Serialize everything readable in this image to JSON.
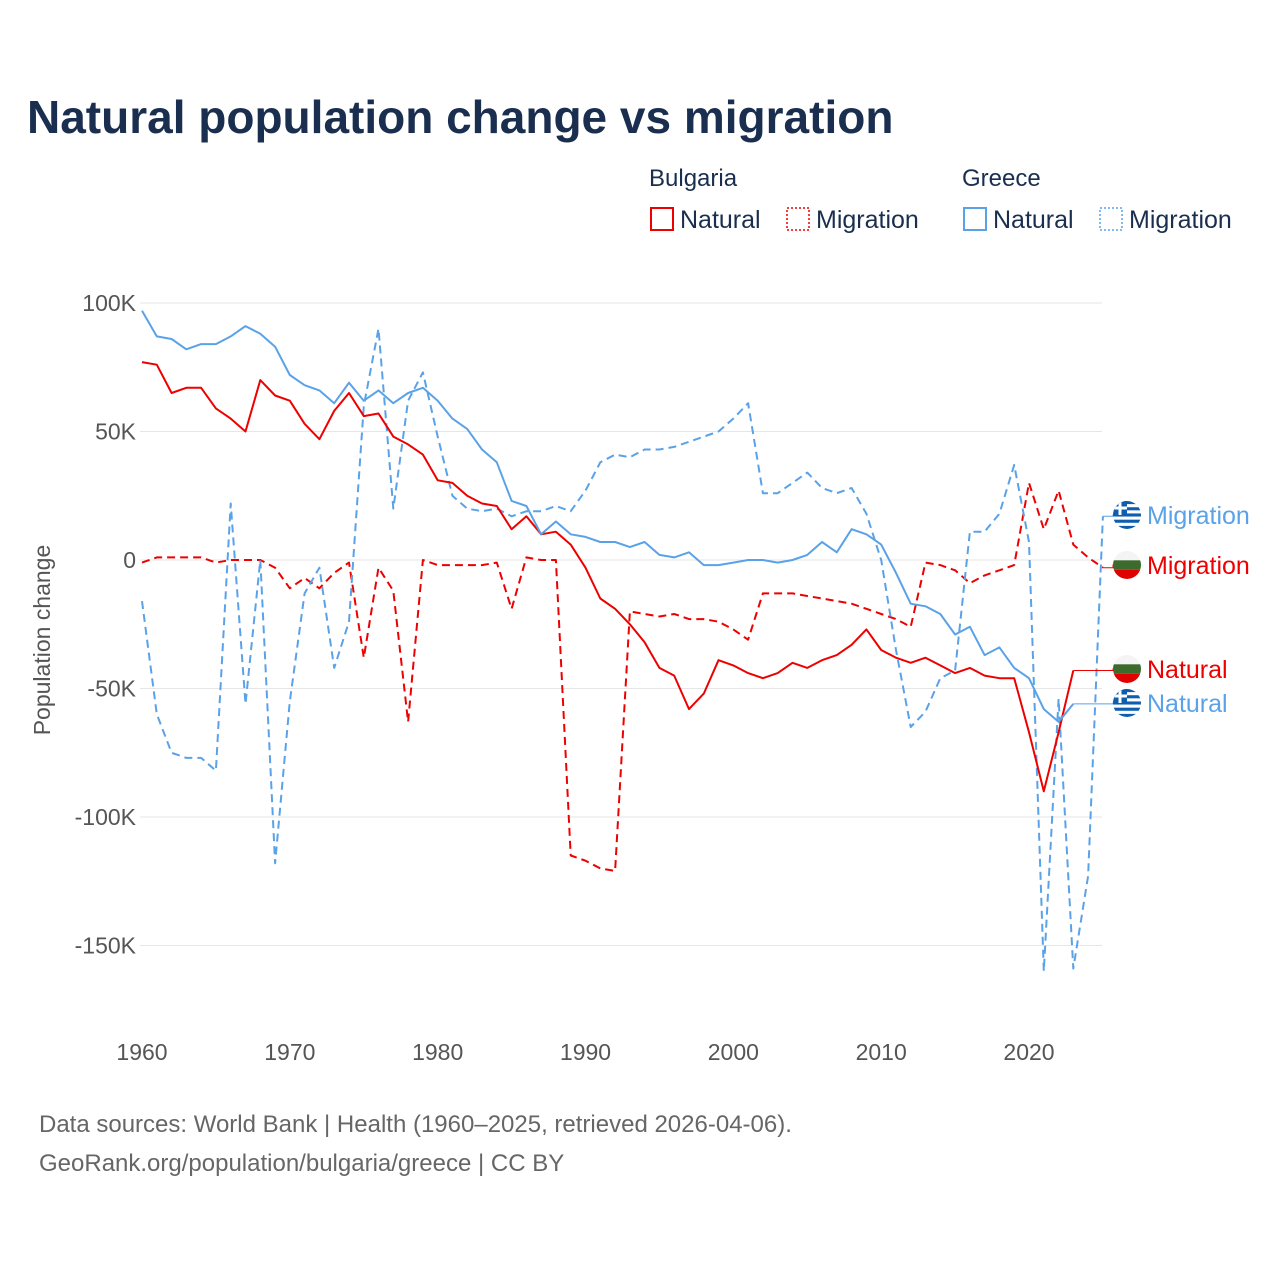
{
  "chart_data": {
    "type": "line",
    "title": "Natural population change vs migration",
    "xlabel": "",
    "ylabel": "Population change",
    "xlim": [
      1960,
      2025
    ],
    "ylim": [
      -165000,
      100000
    ],
    "x_ticks": [
      1960,
      1970,
      1980,
      1990,
      2000,
      2010,
      2020
    ],
    "x_tick_labels": [
      "1960",
      "1970",
      "1980",
      "1990",
      "2000",
      "2010",
      "2020"
    ],
    "y_ticks": [
      100000,
      50000,
      0,
      -50000,
      -100000,
      -150000
    ],
    "y_tick_labels": [
      "100K",
      "50K",
      "0",
      "-50K",
      "-100K",
      "-150K"
    ],
    "grid": true,
    "legend": {
      "placement": "top-right",
      "groups": [
        {
          "label": "Bulgaria",
          "items": [
            "Natural",
            "Migration"
          ]
        },
        {
          "label": "Greece",
          "items": [
            "Natural",
            "Migration"
          ]
        }
      ]
    },
    "colors": {
      "bulgaria": "#ee0000",
      "greece": "#5aa2e8"
    },
    "start_year": 1960,
    "series": [
      {
        "name": "Greece Natural",
        "country": "greece",
        "kind": "natural",
        "end_label": "Natural",
        "values": [
          97,
          87,
          86,
          82,
          84,
          84,
          87,
          91,
          88,
          83,
          72,
          68,
          66,
          61,
          69,
          62,
          66,
          61,
          65,
          67,
          62,
          55,
          51,
          43,
          38,
          23,
          21,
          10,
          15,
          10,
          9,
          7,
          7,
          5,
          7,
          2,
          1,
          3,
          -2,
          -2,
          -1,
          0,
          0,
          -1,
          0,
          2,
          7,
          3,
          12,
          10,
          6,
          -5,
          -17,
          -18,
          -21,
          -29,
          -26,
          -37,
          -34,
          -42,
          -46,
          -58,
          -63,
          -56
        ]
      },
      {
        "name": "Greece Migration",
        "country": "greece",
        "kind": "migration",
        "end_label": "Migration",
        "values": [
          -16,
          -60,
          -75,
          -77,
          -77,
          -82,
          22,
          -56,
          0,
          -118,
          -55,
          -13,
          -3,
          -42,
          -24,
          60,
          90,
          20,
          62,
          73,
          48,
          25,
          20,
          19,
          20,
          17,
          19,
          19,
          21,
          19,
          27,
          38,
          41,
          40,
          43,
          43,
          44,
          46,
          48,
          50,
          55,
          61,
          26,
          26,
          30,
          34,
          28,
          26,
          28,
          18,
          0,
          -35,
          -65,
          -59,
          -46,
          -43,
          11,
          11,
          18,
          37,
          7,
          -160,
          -54,
          -159,
          -123,
          17
        ]
      },
      {
        "name": "Bulgaria Natural",
        "country": "bulgaria",
        "kind": "natural",
        "end_label": "Natural",
        "values": [
          77,
          76,
          65,
          67,
          67,
          59,
          55,
          50,
          70,
          64,
          62,
          53,
          47,
          58,
          65,
          56,
          57,
          48,
          45,
          41,
          31,
          30,
          25,
          22,
          21,
          12,
          17,
          10,
          11,
          6,
          -3,
          -15,
          -19,
          -25,
          -32,
          -42,
          -45,
          -58,
          -52,
          -39,
          -41,
          -44,
          -46,
          -44,
          -40,
          -42,
          -39,
          -37,
          -33,
          -27,
          -35,
          -38,
          -40,
          -38,
          -41,
          -44,
          -42,
          -45,
          -46,
          -46,
          -67,
          -90,
          -67,
          -43
        ]
      },
      {
        "name": "Bulgaria Migration",
        "country": "bulgaria",
        "kind": "migration",
        "end_label": "Migration",
        "values": [
          -1,
          1,
          1,
          1,
          1,
          -1,
          0,
          0,
          0,
          -3,
          -11,
          -7,
          -11,
          -5,
          -1,
          -38,
          -3,
          -12,
          -63,
          0,
          -2,
          -2,
          -2,
          -2,
          -1,
          -19,
          1,
          0,
          0,
          -115,
          -117,
          -120,
          -121,
          -20,
          -21,
          -22,
          -21,
          -23,
          -23,
          -24,
          -27,
          -31,
          -13,
          -13,
          -13,
          -14,
          -15,
          -16,
          -17,
          -19,
          -21,
          -23,
          -26,
          -1,
          -2,
          -4,
          -9,
          -6,
          -4,
          -2,
          30,
          12,
          27,
          6,
          1,
          -3
        ]
      }
    ],
    "value_unit": "thousands"
  },
  "legend_text": {
    "bulgaria": "Bulgaria",
    "greece": "Greece",
    "natural": "Natural",
    "migration": "Migration"
  },
  "footer": {
    "line1": "Data sources: World Bank | Health (1960–2025, retrieved 2026-04-06).",
    "line2": "GeoRank.org/population/bulgaria/greece | CC BY"
  }
}
